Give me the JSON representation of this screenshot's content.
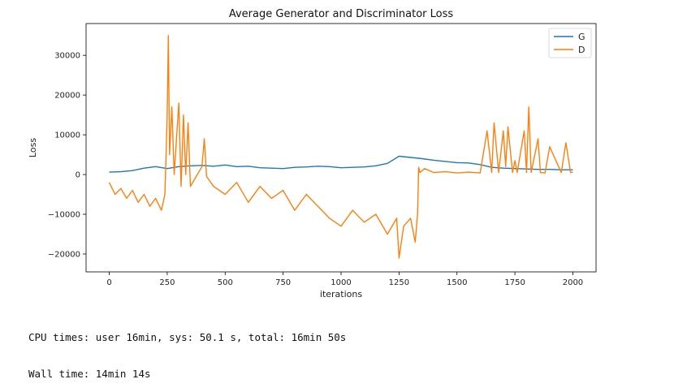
{
  "chart_data": {
    "type": "line",
    "title": "Average Generator and Discriminator Loss",
    "xlabel": "iterations",
    "ylabel": "Loss",
    "xlim": [
      -100,
      2100
    ],
    "ylim": [
      -24500,
      38000
    ],
    "xticks": [
      0,
      250,
      500,
      750,
      1000,
      1250,
      1500,
      1750,
      2000
    ],
    "yticks": [
      -20000,
      -10000,
      0,
      10000,
      20000,
      30000
    ],
    "ytick_labels": [
      "−20000",
      "−10000",
      "0",
      "10000",
      "20000",
      "30000"
    ],
    "legend_position": "top-right",
    "grid": false,
    "series": [
      {
        "name": "G",
        "color": "#1f77b4",
        "x": [
          0,
          50,
          100,
          150,
          200,
          250,
          300,
          350,
          400,
          450,
          500,
          550,
          600,
          650,
          700,
          750,
          800,
          850,
          900,
          950,
          1000,
          1050,
          1100,
          1150,
          1200,
          1250,
          1300,
          1350,
          1400,
          1450,
          1500,
          1550,
          1600,
          1650,
          1700,
          1750,
          1800,
          1850,
          1900,
          1950,
          2000
        ],
        "values": [
          600,
          700,
          1000,
          1600,
          2000,
          1500,
          2000,
          2200,
          2300,
          2100,
          2400,
          2000,
          2100,
          1700,
          1600,
          1500,
          1800,
          1900,
          2100,
          2000,
          1700,
          1800,
          1900,
          2200,
          2800,
          4600,
          4300,
          4000,
          3600,
          3300,
          3000,
          2900,
          2500,
          1800,
          1600,
          1500,
          1400,
          1300,
          1300,
          1200,
          1200
        ]
      },
      {
        "name": "D",
        "color": "#ff7f0e",
        "x": [
          0,
          25,
          50,
          75,
          100,
          125,
          150,
          175,
          200,
          225,
          240,
          250,
          255,
          260,
          270,
          280,
          300,
          310,
          320,
          330,
          340,
          350,
          375,
          400,
          410,
          420,
          450,
          500,
          550,
          600,
          650,
          700,
          750,
          800,
          850,
          900,
          950,
          1000,
          1050,
          1100,
          1150,
          1200,
          1240,
          1250,
          1270,
          1300,
          1320,
          1330,
          1335,
          1340,
          1360,
          1400,
          1450,
          1500,
          1550,
          1600,
          1630,
          1650,
          1660,
          1680,
          1700,
          1710,
          1720,
          1740,
          1750,
          1760,
          1790,
          1800,
          1810,
          1820,
          1850,
          1860,
          1880,
          1900,
          1950,
          1970,
          1990,
          2000
        ],
        "values": [
          -2000,
          -5000,
          -3500,
          -6000,
          -4000,
          -7000,
          -5000,
          -8000,
          -6000,
          -9000,
          -5000,
          15000,
          35000,
          5000,
          17000,
          0,
          18000,
          -3000,
          15000,
          0,
          13000,
          -3000,
          -500,
          2000,
          9000,
          -500,
          -3000,
          -5000,
          -2000,
          -7000,
          -3000,
          -6000,
          -4000,
          -9000,
          -5000,
          -8000,
          -11000,
          -13000,
          -9000,
          -12000,
          -10000,
          -15000,
          -11000,
          -21000,
          -13000,
          -11000,
          -17000,
          -10000,
          1800,
          500,
          1500,
          500,
          700,
          400,
          600,
          400,
          11000,
          500,
          13000,
          500,
          11000,
          2000,
          12000,
          500,
          3500,
          500,
          11000,
          500,
          17000,
          500,
          9000,
          500,
          400,
          7000,
          500,
          8000,
          500,
          600
        ]
      }
    ]
  },
  "output": {
    "line1": "CPU times: user 16min, sys: 50.1 s, total: 16min 50s",
    "line2": "Wall time: 14min 14s"
  }
}
